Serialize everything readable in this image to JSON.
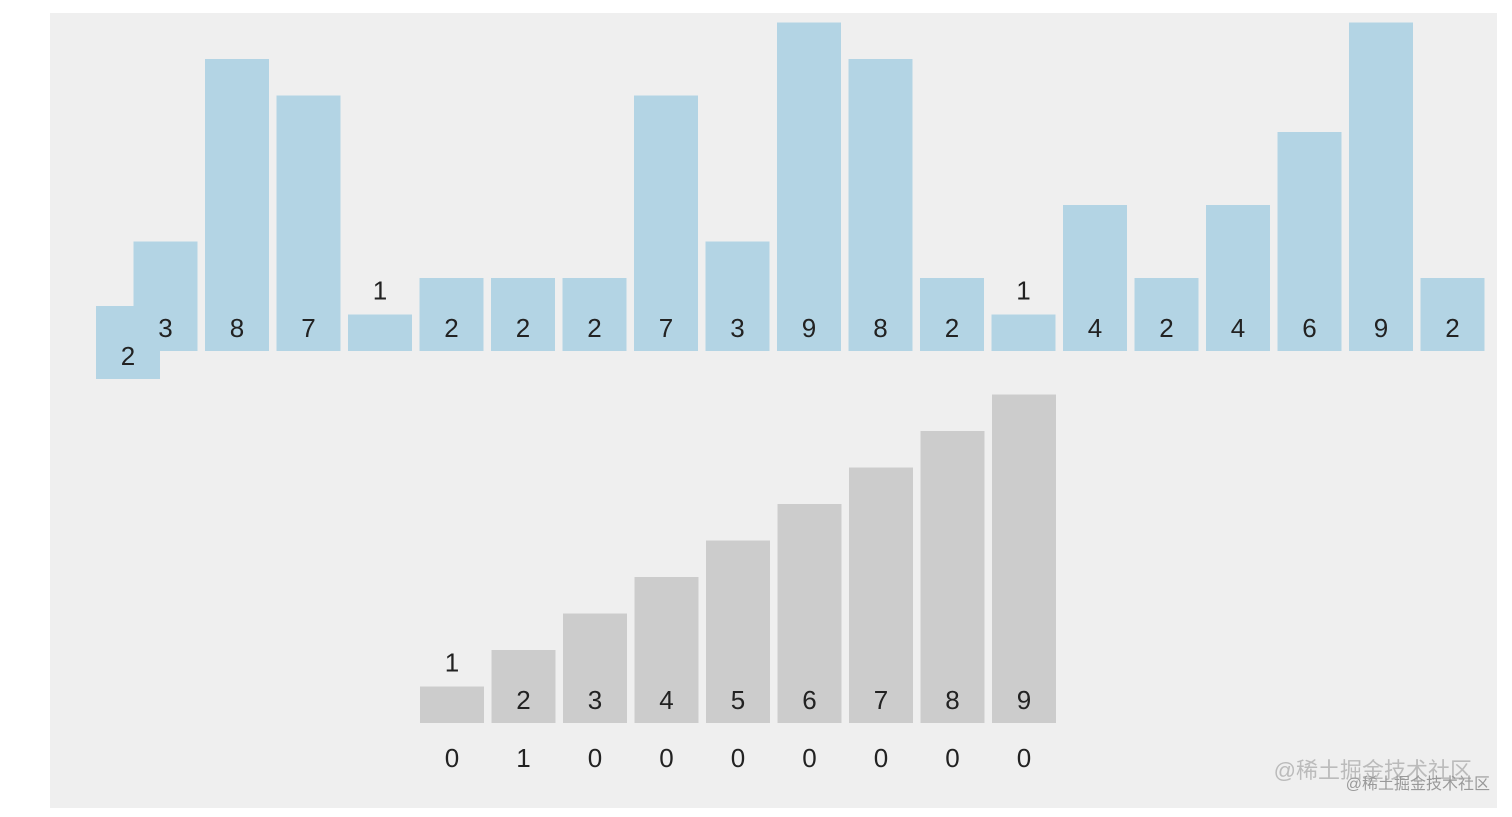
{
  "chart_data": [
    {
      "type": "bar",
      "color": "#b3d4e4",
      "values": [
        2,
        3,
        8,
        7,
        1,
        2,
        2,
        2,
        7,
        3,
        9,
        8,
        2,
        1,
        4,
        2,
        4,
        6,
        9,
        2
      ]
    },
    {
      "type": "bar",
      "color": "#cccccc",
      "values": [
        1,
        2,
        3,
        4,
        5,
        6,
        7,
        8,
        9
      ],
      "counts": [
        0,
        1,
        0,
        0,
        0,
        0,
        0,
        0,
        0
      ]
    }
  ],
  "watermark": "@稀土掘金技术社区"
}
